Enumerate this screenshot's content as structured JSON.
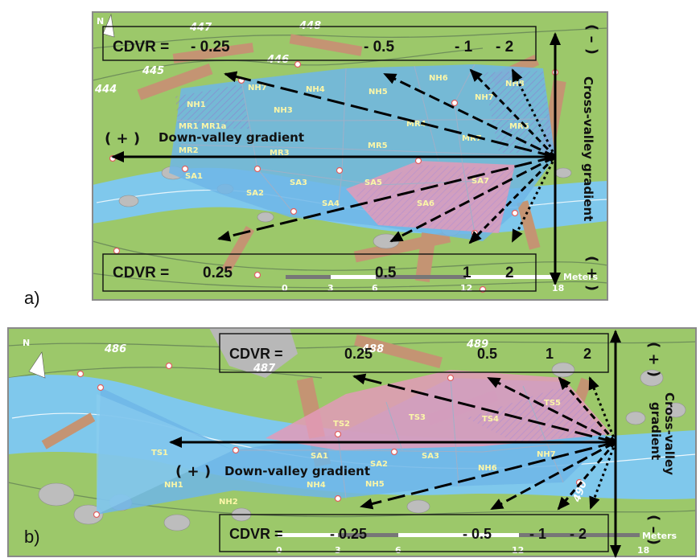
{
  "panels": [
    {
      "label": "a)",
      "cdvr_top": {
        "prefix": "CDVR =",
        "values": [
          "- 0.25",
          "- 0.5",
          "- 1",
          "- 2"
        ]
      },
      "cdvr_bottom": {
        "prefix": "CDVR =",
        "values": [
          "0.25",
          "0.5",
          "1",
          "2"
        ]
      },
      "down_valley_sign": "( + )",
      "down_valley_label": "Down-valley gradient",
      "cross_valley_label": "Cross-valley gradient",
      "cross_top_sign": "( – )",
      "cross_bottom_sign": "( + )",
      "contours": [
        "447",
        "448",
        "445",
        "446",
        "444"
      ],
      "zones": [
        "NH1",
        "NH2",
        "NH3",
        "NH4",
        "NH5",
        "NH6",
        "NH7",
        "NH8",
        "MR1",
        "MR1a",
        "MR2",
        "MR3",
        "MR4",
        "MR5",
        "MR6",
        "MR7",
        "SA1",
        "SA2",
        "SA3",
        "SA4",
        "SA5",
        "SA6",
        "SA7"
      ],
      "scale_ticks": [
        "0",
        "3",
        "6",
        "12",
        "18"
      ],
      "scale_unit": "Meters"
    },
    {
      "label": "b)",
      "cdvr_top": {
        "prefix": "CDVR =",
        "values": [
          "0.25",
          "0.5",
          "1",
          "2"
        ]
      },
      "cdvr_bottom": {
        "prefix": "CDVR =",
        "values": [
          "- 0.25",
          "- 0.5",
          "- 1",
          "- 2"
        ]
      },
      "down_valley_sign": "( + )",
      "down_valley_label": "Down-valley gradient",
      "cross_valley_label_1": "Cross-valley",
      "cross_valley_label_2": "gradient",
      "cross_top_sign": "( + )",
      "cross_bottom_sign": "( – )",
      "contours": [
        "486",
        "488",
        "489",
        "487",
        "490"
      ],
      "zones": [
        "TS1",
        "TS2",
        "TS3",
        "TS4",
        "TS5",
        "SA1",
        "SA2",
        "SA3",
        "NH1",
        "NH2",
        "NH4",
        "NH5",
        "NH6",
        "NH7"
      ],
      "scale_ticks": [
        "0",
        "3",
        "6",
        "12",
        "18"
      ],
      "scale_unit": "Meters"
    }
  ],
  "colors": {
    "land": "#9cc86a",
    "water": "#7fc8ec",
    "study_area_blue": "#6eb6e8",
    "study_area_pink": "#e39ab8",
    "logs": "#c49473",
    "rock": "#bdbdbd",
    "frame": "#8a8a8a"
  }
}
